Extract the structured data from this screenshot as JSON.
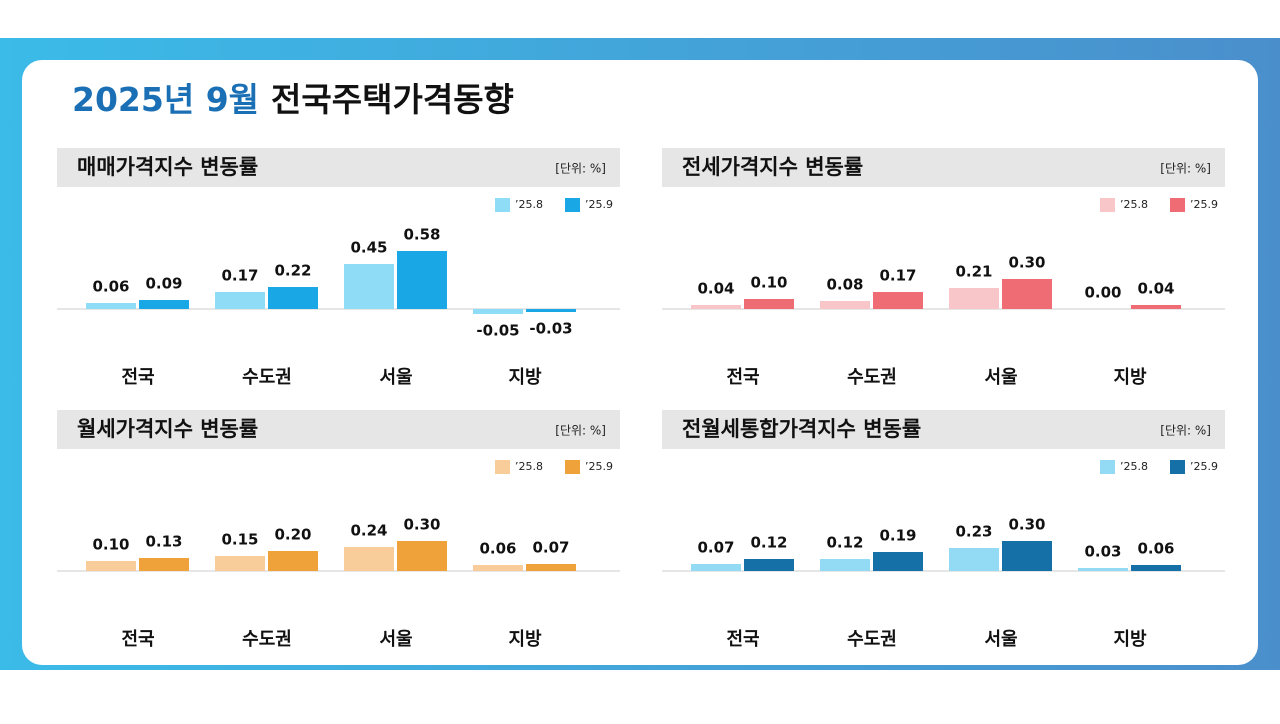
{
  "header": {
    "date": "2025년 9월",
    "title": "전국주택가격동향"
  },
  "chart_data": [
    {
      "type": "bar",
      "title": "매매가격지수 변동률",
      "unit": "[단위: %]",
      "categories": [
        "전국",
        "수도권",
        "서울",
        "지방"
      ],
      "series": [
        {
          "name": "’25.8",
          "color": "#8fdcf7",
          "values": [
            0.06,
            0.17,
            0.45,
            -0.05
          ],
          "value_labels": [
            "0.06",
            "0.17",
            "0.45",
            "-0.05"
          ]
        },
        {
          "name": "’25.9",
          "color": "#1aa7e6",
          "values": [
            0.09,
            0.22,
            0.58,
            -0.03
          ],
          "value_labels": [
            "0.09",
            "0.22",
            "0.58",
            "-0.03"
          ]
        }
      ]
    },
    {
      "type": "bar",
      "title": "전세가격지수 변동률",
      "unit": "[단위: %]",
      "categories": [
        "전국",
        "수도권",
        "서울",
        "지방"
      ],
      "series": [
        {
          "name": "’25.8",
          "color": "#f8c6c8",
          "values": [
            0.04,
            0.08,
            0.21,
            0.0
          ],
          "value_labels": [
            "0.04",
            "0.08",
            "0.21",
            "0.00"
          ]
        },
        {
          "name": "’25.9",
          "color": "#f06c74",
          "values": [
            0.1,
            0.17,
            0.3,
            0.04
          ],
          "value_labels": [
            "0.10",
            "0.17",
            "0.30",
            "0.04"
          ]
        }
      ]
    },
    {
      "type": "bar",
      "title": "월세가격지수 변동률",
      "unit": "[단위: %]",
      "categories": [
        "전국",
        "수도권",
        "서울",
        "지방"
      ],
      "series": [
        {
          "name": "’25.8",
          "color": "#f8cd9a",
          "values": [
            0.1,
            0.15,
            0.24,
            0.06
          ],
          "value_labels": [
            "0.10",
            "0.15",
            "0.24",
            "0.06"
          ]
        },
        {
          "name": "’25.9",
          "color": "#f0a23a",
          "values": [
            0.13,
            0.2,
            0.3,
            0.07
          ],
          "value_labels": [
            "0.13",
            "0.20",
            "0.30",
            "0.07"
          ]
        }
      ]
    },
    {
      "type": "bar",
      "title": "전월세통합가격지수 변동률",
      "unit": "[단위: %]",
      "categories": [
        "전국",
        "수도권",
        "서울",
        "지방"
      ],
      "series": [
        {
          "name": "’25.8",
          "color": "#93daf5",
          "values": [
            0.07,
            0.12,
            0.23,
            0.03
          ],
          "value_labels": [
            "0.07",
            "0.12",
            "0.23",
            "0.03"
          ]
        },
        {
          "name": "’25.9",
          "color": "#1670a8",
          "values": [
            0.12,
            0.19,
            0.3,
            0.06
          ],
          "value_labels": [
            "0.12",
            "0.19",
            "0.30",
            "0.06"
          ]
        }
      ]
    }
  ]
}
